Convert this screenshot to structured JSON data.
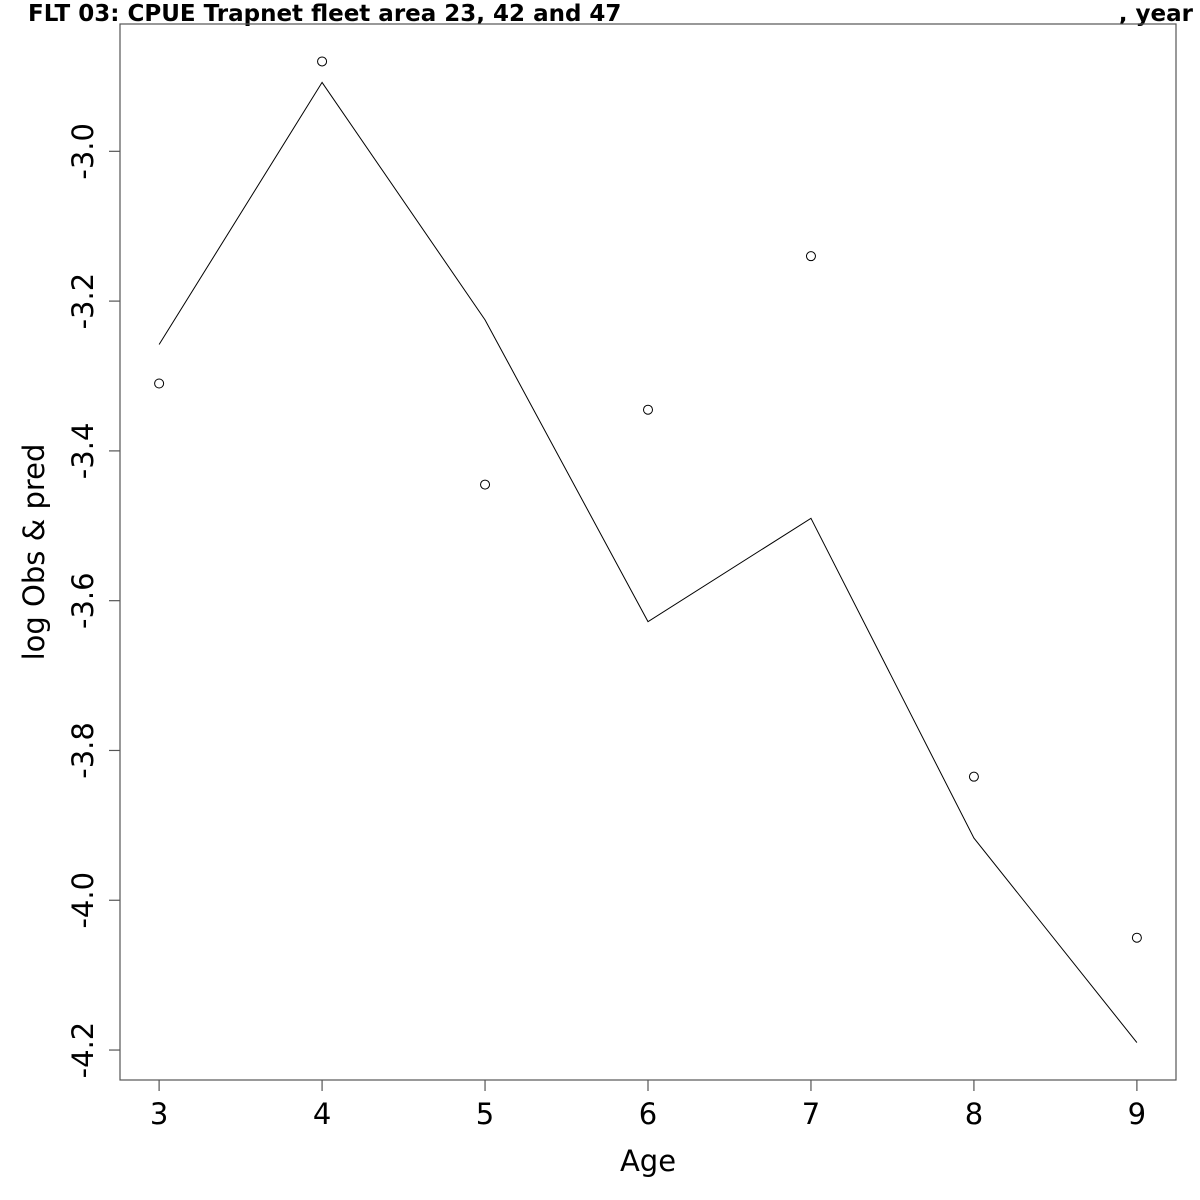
{
  "chart_data": {
    "type": "line",
    "title": "FLT 03: CPUE Trapnet fleet area 23, 42 and 47",
    "title_suffix": ", year",
    "xlabel": "Age",
    "ylabel": "log Obs & pred",
    "x": [
      3,
      4,
      5,
      6,
      7,
      8,
      9
    ],
    "xlim": [
      2.76,
      9.24
    ],
    "ylim": [
      -4.24,
      -2.83
    ],
    "x_ticks": [
      "3",
      "4",
      "5",
      "6",
      "7",
      "8",
      "9"
    ],
    "y_ticks": [
      "-3.0",
      "-3.2",
      "-3.4",
      "-3.6",
      "-3.8",
      "-4.0",
      "-4.2"
    ],
    "y_tick_values": [
      -3.0,
      -3.2,
      -3.4,
      -3.6,
      -3.8,
      -4.0,
      -4.2
    ],
    "series": [
      {
        "name": "",
        "kind": "points",
        "values": [
          -3.31,
          -2.88,
          -3.445,
          -3.345,
          -3.14,
          -3.835,
          -4.05
        ]
      },
      {
        "name": "",
        "kind": "line",
        "values": [
          -3.258,
          -2.908,
          -3.225,
          -3.628,
          -3.49,
          -3.917,
          -4.19
        ]
      }
    ],
    "grid": false,
    "legend": "none"
  }
}
